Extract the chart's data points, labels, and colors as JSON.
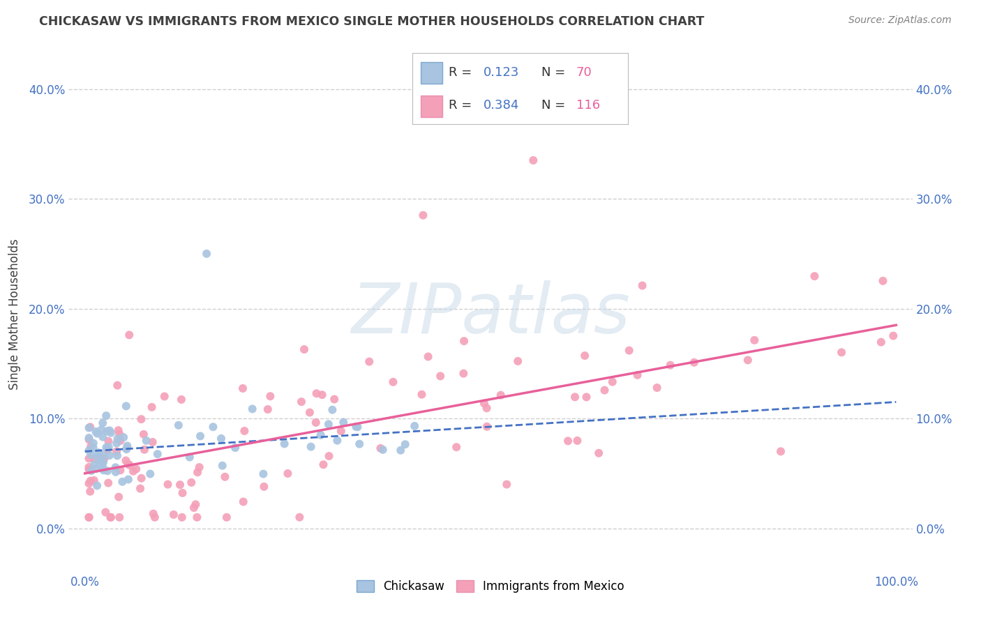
{
  "title": "CHICKASAW VS IMMIGRANTS FROM MEXICO SINGLE MOTHER HOUSEHOLDS CORRELATION CHART",
  "source": "Source: ZipAtlas.com",
  "ylabel": "Single Mother Households",
  "chickasaw_R": 0.123,
  "chickasaw_N": 70,
  "mexico_R": 0.384,
  "mexico_N": 116,
  "chickasaw_color": "#a8c4e0",
  "mexico_color": "#f4a0b8",
  "chickasaw_line_color": "#4472c4",
  "mexico_line_color": "#e8609a",
  "title_color": "#404040",
  "axis_tick_color": "#4472c4",
  "source_color": "#808080",
  "legend_R_color": "#4472c4",
  "legend_N_color": "#e8609a",
  "background_color": "#ffffff",
  "grid_color": "#d0d0d0",
  "xlim": [
    -0.02,
    1.02
  ],
  "ylim": [
    -0.04,
    0.43
  ],
  "xticks": [
    0.0,
    1.0
  ],
  "yticks": [
    0.0,
    0.1,
    0.2,
    0.3,
    0.4
  ],
  "xtick_labels": [
    "0.0%",
    "100.0%"
  ],
  "ytick_labels": [
    "0.0%",
    "10.0%",
    "20.0%",
    "30.0%",
    "40.0%"
  ],
  "watermark": "ZIPatlas",
  "chickasaw_line_x0": 0.0,
  "chickasaw_line_y0": 0.07,
  "chickasaw_line_x1": 1.0,
  "chickasaw_line_y1": 0.115,
  "mexico_line_x0": 0.0,
  "mexico_line_y0": 0.05,
  "mexico_line_x1": 1.0,
  "mexico_line_y1": 0.185
}
